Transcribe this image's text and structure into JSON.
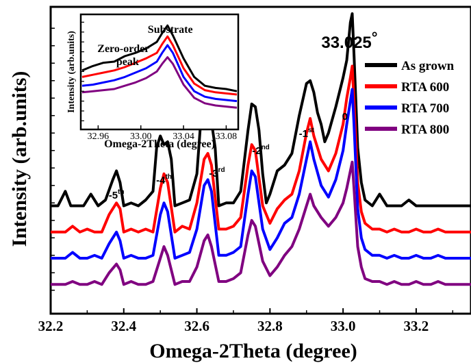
{
  "chart_data": [
    {
      "type": "line",
      "title": "",
      "xlabel": "Omega-2Theta (degree)",
      "ylabel": "Intensity (arb.units)",
      "xlim": [
        32.2,
        33.35
      ],
      "ylim": [
        0,
        10
      ],
      "x_ticks": [
        "32.2",
        "32.4",
        "32.6",
        "32.8",
        "33.0",
        "33.2"
      ],
      "x_tick_values": [
        32.2,
        32.4,
        32.6,
        32.8,
        33.0,
        33.2
      ],
      "legend_position": "top-right",
      "grid": false,
      "peak_label": "33.025",
      "peak_label_unit": "°",
      "peak_label_x": 33.025,
      "annotations": [
        {
          "text": "-5",
          "sup": "th",
          "x": 32.38
        },
        {
          "text": "-4",
          "sup": "th",
          "x": 32.51
        },
        {
          "text": "-3",
          "sup": "rd",
          "x": 32.655
        },
        {
          "text": "-2",
          "sup": "nd",
          "x": 32.775
        },
        {
          "text": "-1",
          "sup": "st",
          "x": 32.9
        },
        {
          "text": "0",
          "sup": "",
          "x": 33.005
        }
      ],
      "series": [
        {
          "name": "As grown",
          "color": "#000000",
          "baseline": 3.4,
          "x": [
            32.2,
            32.22,
            32.24,
            32.255,
            32.27,
            32.29,
            32.31,
            32.33,
            32.35,
            32.37,
            32.38,
            32.39,
            32.4,
            32.42,
            32.44,
            32.46,
            32.48,
            32.49,
            32.5,
            32.51,
            32.52,
            32.53,
            32.54,
            32.56,
            32.58,
            32.6,
            32.61,
            32.62,
            32.63,
            32.64,
            32.65,
            32.66,
            32.68,
            32.7,
            32.72,
            32.74,
            32.75,
            32.76,
            32.77,
            32.78,
            32.79,
            32.8,
            32.82,
            32.84,
            32.86,
            32.88,
            32.9,
            32.91,
            32.92,
            32.93,
            32.94,
            32.95,
            32.96,
            32.98,
            33.0,
            33.01,
            33.02,
            33.025,
            33.03,
            33.04,
            33.05,
            33.06,
            33.08,
            33.1,
            33.12,
            33.14,
            33.16,
            33.18,
            33.2,
            33.22,
            33.24,
            33.26,
            33.28,
            33.3,
            33.32,
            33.35
          ],
          "y": [
            3.4,
            3.4,
            3.9,
            3.4,
            3.4,
            3.4,
            3.8,
            3.4,
            3.6,
            4.3,
            4.6,
            4.2,
            3.4,
            3.5,
            3.4,
            3.6,
            3.9,
            5.4,
            5.8,
            5.5,
            5.6,
            5.0,
            3.4,
            3.5,
            3.6,
            4.5,
            6.2,
            6.9,
            6.6,
            6.3,
            5.4,
            3.4,
            3.5,
            3.5,
            3.9,
            6.0,
            6.9,
            6.8,
            6.0,
            4.5,
            3.5,
            3.8,
            4.6,
            4.8,
            5.2,
            6.5,
            7.6,
            7.7,
            7.3,
            6.6,
            6.2,
            5.6,
            5.9,
            6.8,
            7.8,
            8.4,
            9.7,
            10.0,
            8.6,
            5.4,
            4.2,
            3.6,
            3.4,
            3.8,
            3.4,
            3.4,
            3.4,
            3.6,
            3.4,
            3.4,
            3.4,
            3.4,
            3.4,
            3.4,
            3.4,
            3.4
          ]
        },
        {
          "name": "RTA 600",
          "color": "#ff0000",
          "baseline": 2.5,
          "x": [
            32.2,
            32.22,
            32.24,
            32.26,
            32.28,
            32.3,
            32.32,
            32.34,
            32.36,
            32.38,
            32.39,
            32.4,
            32.42,
            32.44,
            32.46,
            32.48,
            32.5,
            32.51,
            32.52,
            32.54,
            32.56,
            32.58,
            32.6,
            32.62,
            32.63,
            32.64,
            32.66,
            32.68,
            32.7,
            32.72,
            32.74,
            32.75,
            32.76,
            32.78,
            32.8,
            32.82,
            32.84,
            32.86,
            32.88,
            32.9,
            32.91,
            32.92,
            32.94,
            32.96,
            32.98,
            33.0,
            33.01,
            33.02,
            33.025,
            33.03,
            33.04,
            33.05,
            33.06,
            33.08,
            33.1,
            33.12,
            33.14,
            33.16,
            33.18,
            33.2,
            33.22,
            33.24,
            33.26,
            33.28,
            33.3,
            33.32,
            33.35
          ],
          "y": [
            2.5,
            2.5,
            2.5,
            2.7,
            2.5,
            2.6,
            2.5,
            2.5,
            3.1,
            3.5,
            3.3,
            2.5,
            2.6,
            2.5,
            2.6,
            2.5,
            4.0,
            4.5,
            4.2,
            2.5,
            2.7,
            2.6,
            3.5,
            5.0,
            5.2,
            4.8,
            2.6,
            2.6,
            2.7,
            3.0,
            4.8,
            5.5,
            5.3,
            3.4,
            2.8,
            3.3,
            3.6,
            3.8,
            4.6,
            5.9,
            6.4,
            5.8,
            5.0,
            4.6,
            5.2,
            6.2,
            7.1,
            7.8,
            8.2,
            7.0,
            4.2,
            3.2,
            2.8,
            2.6,
            2.6,
            2.5,
            2.6,
            2.5,
            2.5,
            2.6,
            2.5,
            2.5,
            2.6,
            2.5,
            2.5,
            2.5,
            2.5
          ]
        },
        {
          "name": "RTA 700",
          "color": "#0000ff",
          "baseline": 1.6,
          "x": [
            32.2,
            32.22,
            32.24,
            32.26,
            32.28,
            32.3,
            32.32,
            32.34,
            32.36,
            32.38,
            32.39,
            32.4,
            32.42,
            32.44,
            32.46,
            32.48,
            32.5,
            32.51,
            32.52,
            32.54,
            32.56,
            32.58,
            32.6,
            32.62,
            32.63,
            32.64,
            32.66,
            32.68,
            32.7,
            32.72,
            32.74,
            32.75,
            32.76,
            32.78,
            32.8,
            32.82,
            32.84,
            32.86,
            32.88,
            32.9,
            32.91,
            32.92,
            32.94,
            32.96,
            32.98,
            33.0,
            33.01,
            33.02,
            33.025,
            33.03,
            33.04,
            33.05,
            33.06,
            33.08,
            33.1,
            33.12,
            33.14,
            33.16,
            33.18,
            33.2,
            33.22,
            33.24,
            33.26,
            33.28,
            33.3,
            33.32,
            33.35
          ],
          "y": [
            1.6,
            1.6,
            1.6,
            1.8,
            1.6,
            1.6,
            1.7,
            1.6,
            2.1,
            2.5,
            2.2,
            1.6,
            1.7,
            1.6,
            1.6,
            1.7,
            3.1,
            3.5,
            3.2,
            1.6,
            1.7,
            1.8,
            2.6,
            4.1,
            4.3,
            3.9,
            1.7,
            1.7,
            1.8,
            2.0,
            3.8,
            4.6,
            4.4,
            2.6,
            1.9,
            2.3,
            2.8,
            3.0,
            3.8,
            5.0,
            5.6,
            5.0,
            4.1,
            3.7,
            4.3,
            5.3,
            6.2,
            7.0,
            7.4,
            6.2,
            3.3,
            2.3,
            1.9,
            1.7,
            1.7,
            1.6,
            1.7,
            1.6,
            1.6,
            1.7,
            1.6,
            1.6,
            1.7,
            1.6,
            1.6,
            1.6,
            1.6
          ]
        },
        {
          "name": "RTA 800",
          "color": "#800080",
          "baseline": 0.7,
          "x": [
            32.2,
            32.22,
            32.24,
            32.26,
            32.28,
            32.3,
            32.32,
            32.34,
            32.36,
            32.38,
            32.39,
            32.4,
            32.42,
            32.44,
            32.46,
            32.48,
            32.5,
            32.51,
            32.52,
            32.54,
            32.56,
            32.58,
            32.6,
            32.62,
            32.63,
            32.64,
            32.66,
            32.68,
            32.7,
            32.72,
            32.74,
            32.75,
            32.76,
            32.78,
            32.8,
            32.82,
            32.84,
            32.86,
            32.88,
            32.9,
            32.91,
            32.92,
            32.94,
            32.96,
            32.98,
            33.0,
            33.01,
            33.02,
            33.025,
            33.03,
            33.04,
            33.05,
            33.06,
            33.08,
            33.1,
            33.12,
            33.14,
            33.16,
            33.18,
            33.2,
            33.22,
            33.24,
            33.26,
            33.28,
            33.3,
            33.32,
            33.35
          ],
          "y": [
            0.7,
            0.7,
            0.7,
            0.8,
            0.7,
            0.7,
            0.8,
            0.7,
            1.1,
            1.4,
            1.2,
            0.7,
            0.8,
            0.7,
            0.7,
            0.8,
            1.6,
            2.0,
            1.7,
            0.7,
            0.8,
            0.8,
            1.3,
            2.2,
            2.4,
            2.0,
            0.8,
            0.8,
            0.9,
            1.1,
            2.4,
            2.9,
            2.7,
            1.5,
            1.0,
            1.3,
            1.7,
            2.0,
            2.6,
            3.4,
            3.8,
            3.4,
            3.0,
            2.7,
            3.0,
            3.5,
            4.0,
            4.6,
            4.9,
            4.0,
            2.0,
            1.3,
            0.9,
            0.8,
            0.8,
            0.7,
            0.8,
            0.7,
            0.7,
            0.8,
            0.7,
            0.7,
            0.8,
            0.7,
            0.7,
            0.7,
            0.7
          ]
        }
      ]
    },
    {
      "type": "line",
      "title": "",
      "xlabel": "Omega-2Theta (degree)",
      "ylabel": "Intensity (arb.units)",
      "xlim": [
        32.945,
        33.09
      ],
      "ylim": [
        0,
        10
      ],
      "x_ticks": [
        "32.96",
        "33.00",
        "33.04",
        "33.08"
      ],
      "x_tick_values": [
        32.96,
        33.0,
        33.04,
        33.08
      ],
      "annotations": [
        {
          "text": "Substrate",
          "x": 33.025
        },
        {
          "text": "Zero-order",
          "x": 32.985
        },
        {
          "text": "peak",
          "x": 32.985
        }
      ],
      "series": [
        {
          "name": "As grown",
          "color": "#000000",
          "x": [
            32.945,
            32.955,
            32.965,
            32.975,
            32.985,
            32.995,
            33.005,
            33.015,
            33.02,
            33.025,
            33.03,
            33.04,
            33.05,
            33.06,
            33.07,
            33.08,
            33.09
          ],
          "y": [
            5.2,
            5.6,
            5.9,
            6.0,
            6.5,
            6.8,
            7.2,
            7.8,
            8.6,
            9.3,
            8.4,
            6.3,
            4.6,
            3.8,
            3.6,
            3.5,
            3.3
          ]
        },
        {
          "name": "RTA 600",
          "color": "#ff0000",
          "x": [
            32.945,
            32.955,
            32.965,
            32.975,
            32.985,
            32.995,
            33.005,
            33.015,
            33.02,
            33.025,
            33.03,
            33.04,
            33.05,
            33.06,
            33.07,
            33.08,
            33.09
          ],
          "y": [
            4.6,
            4.8,
            5.0,
            5.2,
            5.5,
            5.9,
            6.3,
            6.8,
            7.6,
            8.3,
            7.5,
            5.4,
            4.0,
            3.4,
            3.2,
            3.1,
            3.0
          ]
        },
        {
          "name": "RTA 700",
          "color": "#0000ff",
          "x": [
            32.945,
            32.955,
            32.965,
            32.975,
            32.985,
            32.995,
            33.005,
            33.015,
            33.02,
            33.025,
            33.03,
            33.04,
            33.05,
            33.06,
            33.07,
            33.08,
            33.09
          ],
          "y": [
            3.8,
            3.9,
            4.1,
            4.3,
            4.6,
            5.0,
            5.4,
            6.0,
            6.8,
            7.5,
            6.8,
            4.6,
            3.3,
            2.8,
            2.6,
            2.5,
            2.4
          ]
        },
        {
          "name": "RTA 800",
          "color": "#800080",
          "x": [
            32.945,
            32.955,
            32.965,
            32.975,
            32.985,
            32.995,
            33.005,
            33.015,
            33.02,
            33.025,
            33.03,
            33.04,
            33.05,
            33.06,
            33.07,
            33.08,
            33.09
          ],
          "y": [
            3.2,
            3.3,
            3.4,
            3.5,
            3.8,
            4.1,
            4.5,
            5.1,
            5.8,
            6.4,
            5.8,
            3.9,
            2.7,
            2.2,
            2.0,
            1.9,
            1.8
          ]
        }
      ]
    }
  ]
}
